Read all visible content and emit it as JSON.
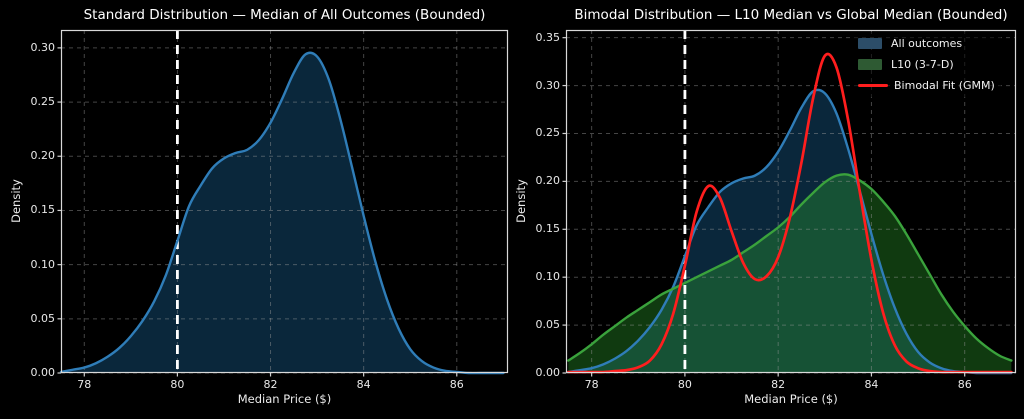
{
  "figure": {
    "background": "#000000",
    "spine_color": "#d9d9d9",
    "grid_color": "#9a9a9a",
    "tick_color": "#cfcfcf",
    "text_color": "#eaeaea"
  },
  "chart_data": [
    {
      "type": "area",
      "title": "Standard Distribution — Median of All Outcomes (Bounded)",
      "xlabel": "Median Price ($)",
      "ylabel": "Density",
      "xlim": [
        77.5,
        87.1
      ],
      "ylim": [
        0,
        0.3165
      ],
      "xticks": [
        78,
        80,
        82,
        84,
        86
      ],
      "yticks": [
        0.0,
        0.05,
        0.1,
        0.15,
        0.2,
        0.25,
        0.3
      ],
      "grid": "dashed",
      "legend_position": "none",
      "vline": {
        "x": 80,
        "color": "#ffffff",
        "style": "dashed"
      },
      "x": [
        77.5,
        77.75,
        78.0,
        78.25,
        78.5,
        78.75,
        79.0,
        79.25,
        79.5,
        79.75,
        80.0,
        80.25,
        80.5,
        80.75,
        81.0,
        81.25,
        81.5,
        81.75,
        82.0,
        82.25,
        82.5,
        82.75,
        83.0,
        83.25,
        83.5,
        83.75,
        84.0,
        84.25,
        84.5,
        84.75,
        85.0,
        85.25,
        85.5,
        85.75,
        86.0,
        86.25,
        86.5,
        86.75,
        87.0
      ],
      "series": [
        {
          "name": "All outcomes",
          "kind": "area",
          "stroke": "#2f7db8",
          "stroke_width": 2.4,
          "fill": "#1f77b4",
          "fill_opacity": 0.33,
          "values": [
            0.001,
            0.003,
            0.005,
            0.009,
            0.015,
            0.023,
            0.034,
            0.048,
            0.066,
            0.09,
            0.122,
            0.154,
            0.173,
            0.189,
            0.198,
            0.203,
            0.206,
            0.215,
            0.231,
            0.253,
            0.277,
            0.294,
            0.292,
            0.271,
            0.234,
            0.19,
            0.145,
            0.103,
            0.068,
            0.041,
            0.022,
            0.011,
            0.005,
            0.002,
            0.001,
            0.0,
            0.0,
            0.0,
            0.0
          ]
        }
      ]
    },
    {
      "type": "area",
      "title": "Bimodal Distribution — L10 Median vs Global Median (Bounded)",
      "xlabel": "Median Price ($)",
      "ylabel": "Density",
      "xlim": [
        77.45,
        87.1
      ],
      "ylim": [
        0,
        0.358
      ],
      "xticks": [
        78,
        80,
        82,
        84,
        86
      ],
      "yticks": [
        0.0,
        0.05,
        0.1,
        0.15,
        0.2,
        0.25,
        0.3,
        0.35
      ],
      "grid": "dashed",
      "legend_position": "upper right",
      "vline": {
        "x": 80,
        "color": "#ffffff",
        "style": "dashed"
      },
      "x": [
        77.5,
        77.75,
        78.0,
        78.25,
        78.5,
        78.75,
        79.0,
        79.25,
        79.5,
        79.75,
        80.0,
        80.25,
        80.5,
        80.75,
        81.0,
        81.25,
        81.5,
        81.75,
        82.0,
        82.25,
        82.5,
        82.75,
        83.0,
        83.25,
        83.5,
        83.75,
        84.0,
        84.25,
        84.5,
        84.75,
        85.0,
        85.25,
        85.5,
        85.75,
        86.0,
        86.25,
        86.5,
        86.75,
        87.0
      ],
      "series": [
        {
          "name": "All outcomes",
          "kind": "area",
          "stroke": "#2f7db8",
          "stroke_width": 2.4,
          "fill": "#1f77b4",
          "fill_opacity": 0.33,
          "values": [
            0.001,
            0.003,
            0.005,
            0.009,
            0.015,
            0.023,
            0.034,
            0.048,
            0.066,
            0.09,
            0.122,
            0.154,
            0.173,
            0.189,
            0.198,
            0.203,
            0.206,
            0.215,
            0.231,
            0.253,
            0.277,
            0.294,
            0.292,
            0.271,
            0.234,
            0.19,
            0.145,
            0.103,
            0.068,
            0.041,
            0.022,
            0.011,
            0.005,
            0.002,
            0.001,
            0.0,
            0.0,
            0.0,
            0.0
          ]
        },
        {
          "name": "L10 (3-7-D)",
          "kind": "area",
          "stroke": "#3aa23c",
          "stroke_width": 2.4,
          "fill": "#2ca02c",
          "fill_opacity": 0.36,
          "values": [
            0.013,
            0.021,
            0.03,
            0.04,
            0.049,
            0.058,
            0.066,
            0.074,
            0.082,
            0.088,
            0.094,
            0.1,
            0.106,
            0.112,
            0.118,
            0.126,
            0.134,
            0.143,
            0.152,
            0.163,
            0.176,
            0.188,
            0.199,
            0.206,
            0.207,
            0.201,
            0.192,
            0.179,
            0.164,
            0.145,
            0.124,
            0.103,
            0.082,
            0.064,
            0.049,
            0.036,
            0.026,
            0.018,
            0.013
          ]
        },
        {
          "name": "Bimodal Fit (GMM)",
          "kind": "line",
          "stroke": "#ff1e1e",
          "stroke_width": 2.7,
          "values": [
            0.001,
            0.001,
            0.001,
            0.001,
            0.002,
            0.003,
            0.006,
            0.013,
            0.03,
            0.062,
            0.112,
            0.168,
            0.195,
            0.183,
            0.148,
            0.115,
            0.098,
            0.101,
            0.121,
            0.162,
            0.22,
            0.287,
            0.331,
            0.319,
            0.264,
            0.189,
            0.118,
            0.063,
            0.029,
            0.012,
            0.005,
            0.002,
            0.001,
            0.001,
            0.001,
            0.001,
            0.001,
            0.001,
            0.001
          ]
        }
      ],
      "legend": {
        "items": [
          {
            "label": "All outcomes",
            "swatch": "fill",
            "color": "#2c4d68"
          },
          {
            "label": "L10 (3-7-D)",
            "swatch": "fill",
            "color": "#2e5a33"
          },
          {
            "label": "Bimodal Fit (GMM)",
            "swatch": "line",
            "color": "#ff1e1e"
          }
        ]
      }
    }
  ]
}
